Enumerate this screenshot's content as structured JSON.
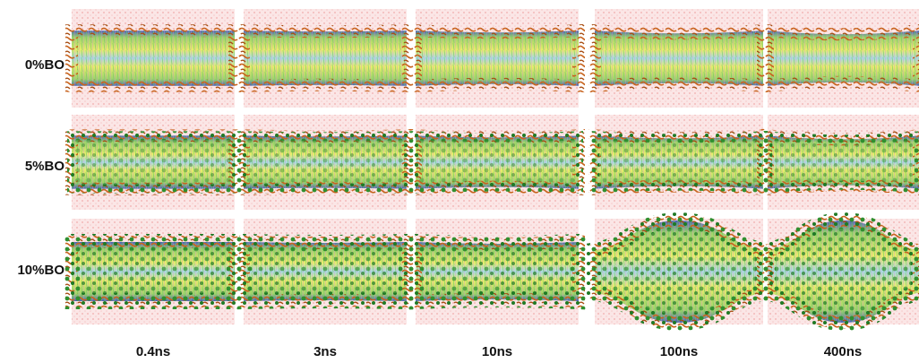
{
  "row_labels": [
    "0%BO",
    "5%BO",
    "10%BO"
  ],
  "column_labels": [
    "0.4ns",
    "3ns",
    "10ns",
    "100ns",
    "400ns"
  ]
}
